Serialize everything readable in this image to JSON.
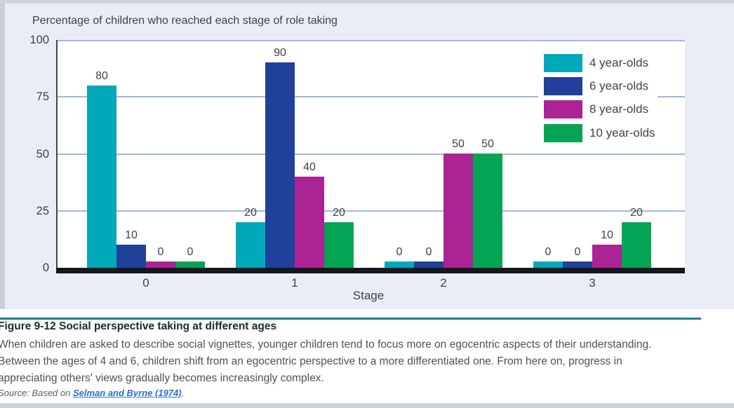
{
  "chart_data": {
    "type": "bar",
    "title": "Percentage of children who reached each stage of role taking",
    "categories": [
      "0",
      "1",
      "2",
      "3"
    ],
    "series": [
      {
        "name": "4 year-olds",
        "color": "#00a9ba",
        "values": [
          80,
          20,
          0,
          0
        ]
      },
      {
        "name": "6 year-olds",
        "color": "#21409a",
        "values": [
          10,
          90,
          0,
          0
        ]
      },
      {
        "name": "8 year-olds",
        "color": "#ab2394",
        "values": [
          0,
          40,
          50,
          10
        ]
      },
      {
        "name": "10 year-olds",
        "color": "#05a455",
        "values": [
          0,
          20,
          50,
          20
        ]
      }
    ],
    "xlabel": "Stage",
    "ylabel": "",
    "ylim": [
      0,
      100
    ],
    "yticks": [
      0,
      25,
      50,
      75,
      100
    ],
    "grid": true,
    "legend_position": "upper right"
  },
  "caption": {
    "title": "Figure 9-12 Social perspective taking at different ages",
    "lines": [
      "When children are asked to describe social vignettes, younger children tend to focus more on egocentric aspects of their understanding.",
      "Between the ages of 4 and 6, children shift from an egocentric perspective to a more differentiated one. From here on, progress in",
      "appreciating others' views gradually becomes increasingly complex."
    ],
    "source_prefix": "Source: Based on ",
    "source_link": "Selman and Byrne (1974)",
    "source_suffix": "."
  },
  "colors": {
    "panel_background": "#e9edf6",
    "plot_background": "#ffffff",
    "gridline": "#a2b7e0",
    "y_axis": "#41464e",
    "x_axis_band": "#15171c",
    "frame": "#ced4dc",
    "separator": "#1b808e",
    "link": "#2b6fc2",
    "text": "#3d424a"
  }
}
